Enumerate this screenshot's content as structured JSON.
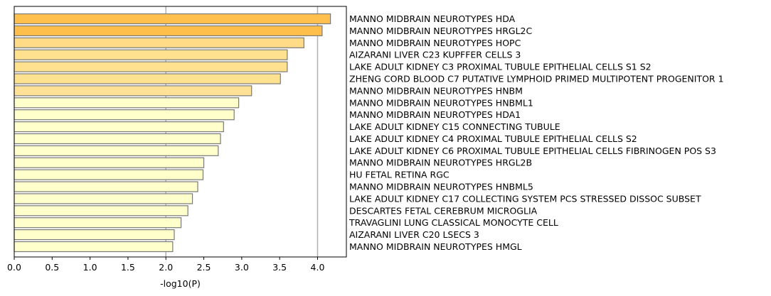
{
  "chart_data": {
    "type": "bar",
    "orientation": "horizontal",
    "xlabel": "-log10(P)",
    "xlim": [
      0,
      4.38
    ],
    "xticks": [
      0.0,
      0.5,
      1.0,
      1.5,
      2.0,
      2.5,
      3.0,
      3.5,
      4.0
    ],
    "xtick_labels": [
      "0.0",
      "0.5",
      "1.0",
      "1.5",
      "2.0",
      "2.5",
      "3.0",
      "3.5",
      "4.0"
    ],
    "reference_lines": [
      2.0,
      4.0
    ],
    "category_label_side": "right",
    "categories": [
      "MANNO MIDBRAIN NEUROTYPES HDA",
      "MANNO MIDBRAIN NEUROTYPES HRGL2C",
      "MANNO MIDBRAIN NEUROTYPES HOPC",
      "AIZARANI LIVER C23 KUPFFER CELLS 3",
      "LAKE ADULT KIDNEY C3 PROXIMAL TUBULE EPITHELIAL CELLS S1 S2",
      "ZHENG CORD BLOOD C7 PUTATIVE LYMPHOID PRIMED MULTIPOTENT PROGENITOR 1",
      "MANNO MIDBRAIN NEUROTYPES HNBM",
      "MANNO MIDBRAIN NEUROTYPES HNBML1",
      "MANNO MIDBRAIN NEUROTYPES HDA1",
      "LAKE ADULT KIDNEY C15 CONNECTING TUBULE",
      "LAKE ADULT KIDNEY C4 PROXIMAL TUBULE EPITHELIAL CELLS S2",
      "LAKE ADULT KIDNEY C6 PROXIMAL TUBULE EPITHELIAL CELLS FIBRINOGEN POS S3",
      "MANNO MIDBRAIN NEUROTYPES HRGL2B",
      "HU FETAL RETINA RGC",
      "MANNO MIDBRAIN NEUROTYPES HNBML5",
      "LAKE ADULT KIDNEY C17 COLLECTING SYSTEM PCS STRESSED DISSOC SUBSET",
      "DESCARTES FETAL CEREBRUM MICROGLIA",
      "TRAVAGLINI LUNG CLASSICAL MONOCYTE CELL",
      "AIZARANI LIVER C20 LSECS 3",
      "MANNO MIDBRAIN NEUROTYPES HMGL"
    ],
    "values": [
      4.17,
      4.06,
      3.82,
      3.6,
      3.6,
      3.51,
      3.13,
      2.96,
      2.9,
      2.76,
      2.72,
      2.69,
      2.5,
      2.49,
      2.42,
      2.35,
      2.29,
      2.2,
      2.11,
      2.09
    ],
    "colors": [
      "#ffc04d",
      "#ffbf4a",
      "#ffdb88",
      "#ffe18f",
      "#ffe18f",
      "#ffe28f",
      "#ffe297",
      "#ffffcc",
      "#ffffcc",
      "#ffffcc",
      "#ffffcc",
      "#ffffcc",
      "#ffffcc",
      "#ffffcc",
      "#ffffcc",
      "#ffffcc",
      "#ffffcc",
      "#ffffcc",
      "#ffffcc",
      "#ffffcc"
    ],
    "bar_edge_color": "#7a7a7a",
    "grid": false
  }
}
